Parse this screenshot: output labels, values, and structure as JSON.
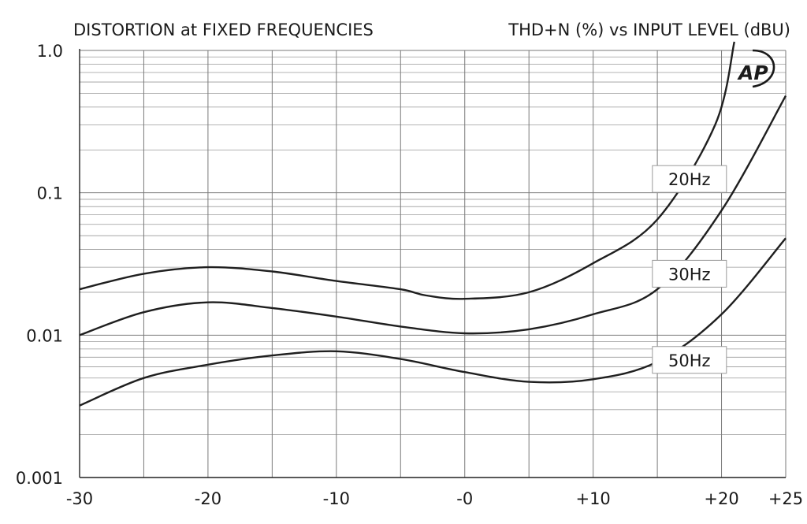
{
  "chart_data": {
    "type": "line",
    "title": "DISTORTION at FIXED FREQUENCIES",
    "subtitle": "THD+N (%) vs INPUT LEVEL (dBU)",
    "xlim": [
      -30,
      25
    ],
    "ylim": [
      0.001,
      1.0
    ],
    "y_scale": "log",
    "grid": true,
    "x_ticks": [
      {
        "value": -30,
        "label": "-30"
      },
      {
        "value": -20,
        "label": "-20"
      },
      {
        "value": -10,
        "label": "-10"
      },
      {
        "value": 0,
        "label": "-0"
      },
      {
        "value": 10,
        "label": "+10"
      },
      {
        "value": 20,
        "label": "+20"
      },
      {
        "value": 25,
        "label": "+25"
      }
    ],
    "y_ticks": [
      {
        "value": 1.0,
        "label": "1.0"
      },
      {
        "value": 0.1,
        "label": "0.1"
      },
      {
        "value": 0.01,
        "label": "0.01"
      },
      {
        "value": 0.001,
        "label": "0.001"
      }
    ],
    "series": [
      {
        "name": "20Hz",
        "label_at": [
          17.5,
          0.125
        ],
        "x": [
          -30,
          -25,
          -20,
          -15,
          -10,
          -5,
          -3,
          0,
          5,
          10,
          15,
          19.5,
          21
        ],
        "y": [
          0.021,
          0.027,
          0.03,
          0.028,
          0.024,
          0.021,
          0.019,
          0.018,
          0.02,
          0.032,
          0.065,
          0.3,
          1.15
        ]
      },
      {
        "name": "30Hz",
        "label_at": [
          17.5,
          0.027
        ],
        "x": [
          -30,
          -25,
          -20,
          -15,
          -10,
          -5,
          0,
          5,
          10,
          15,
          20,
          25
        ],
        "y": [
          0.01,
          0.0145,
          0.017,
          0.0155,
          0.0135,
          0.0115,
          0.0103,
          0.011,
          0.014,
          0.021,
          0.075,
          0.48
        ]
      },
      {
        "name": "50Hz",
        "label_at": [
          17.5,
          0.0067
        ],
        "x": [
          -30,
          -25,
          -20,
          -15,
          -10,
          -5,
          0,
          5,
          10,
          15,
          20,
          25
        ],
        "y": [
          0.0032,
          0.005,
          0.0062,
          0.0072,
          0.0077,
          0.0068,
          0.0055,
          0.0047,
          0.0049,
          0.0065,
          0.014,
          0.048
        ]
      }
    ]
  },
  "logo": {
    "text": "AP",
    "icon": "audio-precision-logo"
  }
}
